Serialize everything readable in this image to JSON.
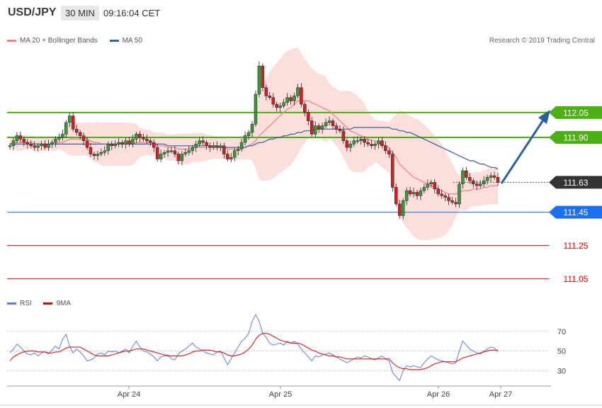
{
  "header": {
    "symbol": "USD/JPY",
    "timeframe": "30 MIN",
    "time": "09:16:04 CET"
  },
  "legend": [
    {
      "label": "MA 20 + Bollinger Bands",
      "color": "#f08080"
    },
    {
      "label": "MA 50",
      "color": "#3a5f9a"
    }
  ],
  "credit": "Research © 2019 Trading Central",
  "rsi_legend": [
    {
      "label": "RSI",
      "color": "#5b7fd6"
    },
    {
      "label": "9MA",
      "color": "#e00000"
    }
  ],
  "chart_data": [
    {
      "type": "candlestick",
      "title": "USD/JPY",
      "x_labels": [
        "Apr 24",
        "Apr 25",
        "Apr 26",
        "Apr 27"
      ],
      "ylim": [
        110.98,
        112.42
      ],
      "levels": [
        {
          "value": 112.05,
          "label": "112.05",
          "color": "#4caf14",
          "style": "resistance"
        },
        {
          "value": 111.9,
          "label": "111.90",
          "color": "#4caf14",
          "style": "resistance"
        },
        {
          "value": 111.63,
          "label": "111.63",
          "color": "#333333",
          "style": "current"
        },
        {
          "value": 111.45,
          "label": "111.45",
          "color": "#1e6ef0",
          "style": "pivot"
        },
        {
          "value": 111.25,
          "label": "111.25",
          "color": "#e00000",
          "style": "support"
        },
        {
          "value": 111.05,
          "label": "111.05",
          "color": "#e00000",
          "style": "support"
        }
      ],
      "closes": [
        111.85,
        111.88,
        111.91,
        111.89,
        111.87,
        111.86,
        111.85,
        111.84,
        111.85,
        111.86,
        111.84,
        111.86,
        111.87,
        111.89,
        111.9,
        111.92,
        111.99,
        112.03,
        111.95,
        111.93,
        111.91,
        111.88,
        111.84,
        111.8,
        111.79,
        111.8,
        111.81,
        111.82,
        111.86,
        111.85,
        111.86,
        111.87,
        111.86,
        111.88,
        111.86,
        111.89,
        111.92,
        111.9,
        111.89,
        111.88,
        111.87,
        111.84,
        111.77,
        111.8,
        111.81,
        111.82,
        111.82,
        111.8,
        111.76,
        111.8,
        111.81,
        111.82,
        111.84,
        111.86,
        111.88,
        111.87,
        111.85,
        111.84,
        111.85,
        111.84,
        111.85,
        111.8,
        111.77,
        111.78,
        111.82,
        111.83,
        111.87,
        111.91,
        111.93,
        111.98,
        112.16,
        112.33,
        112.2,
        112.15,
        112.14,
        112.1,
        112.08,
        112.09,
        112.11,
        112.14,
        112.12,
        112.15,
        112.2,
        112.1,
        112.05,
        112.0,
        111.92,
        111.97,
        111.95,
        111.97,
        111.99,
        112.0,
        111.97,
        111.95,
        111.94,
        111.88,
        111.84,
        111.86,
        111.88,
        111.88,
        111.89,
        111.87,
        111.86,
        111.85,
        111.86,
        111.88,
        111.85,
        111.82,
        111.8,
        111.6,
        111.5,
        111.43,
        111.52,
        111.58,
        111.56,
        111.57,
        111.55,
        111.58,
        111.6,
        111.62,
        111.63,
        111.59,
        111.56,
        111.55,
        111.54,
        111.52,
        111.51,
        111.5,
        111.62,
        111.7,
        111.66,
        111.64,
        111.62,
        111.61,
        111.62,
        111.64,
        111.66,
        111.67,
        111.66,
        111.63
      ],
      "ma20": [
        111.86,
        111.87,
        111.87,
        111.87,
        111.87,
        111.87,
        111.87,
        111.86,
        111.86,
        111.86,
        111.86,
        111.86,
        111.86,
        111.86,
        111.87,
        111.87,
        111.88,
        111.89,
        111.89,
        111.89,
        111.89,
        111.89,
        111.89,
        111.88,
        111.87,
        111.87,
        111.86,
        111.86,
        111.86,
        111.86,
        111.86,
        111.86,
        111.86,
        111.86,
        111.86,
        111.86,
        111.87,
        111.87,
        111.87,
        111.87,
        111.87,
        111.86,
        111.85,
        111.85,
        111.85,
        111.84,
        111.84,
        111.84,
        111.83,
        111.83,
        111.83,
        111.83,
        111.84,
        111.84,
        111.84,
        111.84,
        111.84,
        111.84,
        111.84,
        111.84,
        111.84,
        111.84,
        111.83,
        111.83,
        111.83,
        111.83,
        111.84,
        111.84,
        111.85,
        111.86,
        111.88,
        111.91,
        111.93,
        111.95,
        111.97,
        111.99,
        112.01,
        112.03,
        112.05,
        112.07,
        112.08,
        112.1,
        112.12,
        112.12,
        112.12,
        112.12,
        112.11,
        112.1,
        112.09,
        112.08,
        112.07,
        112.06,
        112.04,
        112.02,
        112.0,
        111.98,
        111.96,
        111.94,
        111.93,
        111.92,
        111.91,
        111.9,
        111.89,
        111.88,
        111.88,
        111.87,
        111.86,
        111.85,
        111.84,
        111.81,
        111.78,
        111.74,
        111.72,
        111.7,
        111.68,
        111.66,
        111.65,
        111.64,
        111.63,
        111.62,
        111.61,
        111.6,
        111.59,
        111.58,
        111.57,
        111.56,
        111.56,
        111.56,
        111.57,
        111.58,
        111.58,
        111.58,
        111.59,
        111.59,
        111.59,
        111.6,
        111.6,
        111.61,
        111.61,
        111.61
      ],
      "ma50": [
        111.86,
        111.86,
        111.86,
        111.86,
        111.86,
        111.86,
        111.86,
        111.86,
        111.86,
        111.86,
        111.86,
        111.86,
        111.86,
        111.86,
        111.86,
        111.86,
        111.86,
        111.86,
        111.86,
        111.86,
        111.86,
        111.86,
        111.86,
        111.86,
        111.86,
        111.86,
        111.86,
        111.86,
        111.86,
        111.86,
        111.86,
        111.86,
        111.86,
        111.86,
        111.86,
        111.86,
        111.86,
        111.86,
        111.86,
        111.86,
        111.86,
        111.86,
        111.86,
        111.86,
        111.86,
        111.85,
        111.85,
        111.85,
        111.85,
        111.85,
        111.85,
        111.85,
        111.85,
        111.85,
        111.85,
        111.85,
        111.85,
        111.85,
        111.85,
        111.85,
        111.84,
        111.84,
        111.84,
        111.84,
        111.84,
        111.84,
        111.84,
        111.84,
        111.85,
        111.85,
        111.86,
        111.87,
        111.87,
        111.88,
        111.89,
        111.89,
        111.9,
        111.9,
        111.91,
        111.91,
        111.92,
        111.92,
        111.93,
        111.93,
        111.94,
        111.94,
        111.94,
        111.95,
        111.95,
        111.95,
        111.95,
        111.95,
        111.95,
        111.95,
        111.95,
        111.95,
        111.95,
        111.95,
        111.96,
        111.96,
        111.96,
        111.96,
        111.96,
        111.96,
        111.96,
        111.96,
        111.96,
        111.96,
        111.96,
        111.95,
        111.95,
        111.94,
        111.94,
        111.93,
        111.93,
        111.92,
        111.91,
        111.9,
        111.89,
        111.88,
        111.87,
        111.86,
        111.85,
        111.84,
        111.83,
        111.82,
        111.81,
        111.8,
        111.79,
        111.78,
        111.77,
        111.76,
        111.76,
        111.75,
        111.74,
        111.74,
        111.73,
        111.72,
        111.72,
        111.71
      ]
    },
    {
      "type": "line",
      "title": "RSI",
      "series": [
        {
          "name": "RSI",
          "values": [
            48,
            52,
            57,
            54,
            50,
            47,
            46,
            48,
            45,
            48,
            49,
            47,
            51,
            55,
            52,
            62,
            67,
            55,
            48,
            52,
            49,
            45,
            40,
            41,
            43,
            47,
            48,
            46,
            50,
            49,
            50,
            48,
            50,
            52,
            48,
            55,
            60,
            54,
            50,
            49,
            47,
            44,
            40,
            44,
            45,
            46,
            42,
            41,
            47,
            50,
            52,
            55,
            58,
            54,
            52,
            50,
            48,
            47,
            46,
            49,
            50,
            43,
            36,
            42,
            48,
            54,
            60,
            63,
            68,
            80,
            87,
            80,
            68,
            64,
            58,
            56,
            57,
            58,
            56,
            60,
            58,
            60,
            57,
            52,
            48,
            44,
            40,
            45,
            44,
            46,
            47,
            48,
            46,
            44,
            42,
            40,
            38,
            40,
            42,
            44,
            43,
            45,
            44,
            42,
            41,
            43,
            45,
            42,
            40,
            28,
            24,
            20,
            30,
            35,
            34,
            35,
            34,
            33,
            38,
            42,
            45,
            43,
            41,
            40,
            39,
            38,
            37,
            38,
            50,
            60,
            56,
            52,
            50,
            48,
            47,
            50,
            52,
            54,
            53,
            49
          ]
        },
        {
          "name": "9MA",
          "values": [
            40,
            44,
            46,
            48,
            49,
            50,
            50,
            50,
            49,
            49,
            49,
            48,
            48,
            49,
            49,
            51,
            53,
            54,
            54,
            54,
            54,
            52,
            50,
            48,
            46,
            45,
            45,
            45,
            45,
            46,
            47,
            48,
            49,
            50,
            50,
            51,
            52,
            52,
            52,
            51,
            50,
            49,
            48,
            47,
            46,
            45,
            45,
            45,
            45,
            45,
            46,
            47,
            49,
            50,
            50,
            51,
            51,
            51,
            50,
            49,
            49,
            48,
            46,
            45,
            45,
            46,
            47,
            49,
            52,
            56,
            62,
            66,
            68,
            68,
            67,
            65,
            63,
            61,
            60,
            59,
            58,
            58,
            58,
            57,
            55,
            53,
            51,
            50,
            48,
            47,
            46,
            45,
            45,
            44,
            44,
            43,
            42,
            42,
            42,
            42,
            42,
            42,
            42,
            42,
            42,
            42,
            42,
            42,
            42,
            38,
            35,
            33,
            32,
            32,
            31,
            31,
            31,
            31,
            32,
            33,
            35,
            37,
            38,
            39,
            39,
            39,
            39,
            39,
            41,
            43,
            44,
            45,
            46,
            47,
            48,
            49,
            50,
            51,
            51,
            51
          ]
        }
      ],
      "y_ticks": [
        "30",
        "50",
        "70"
      ],
      "ylim": [
        18,
        90
      ]
    }
  ]
}
